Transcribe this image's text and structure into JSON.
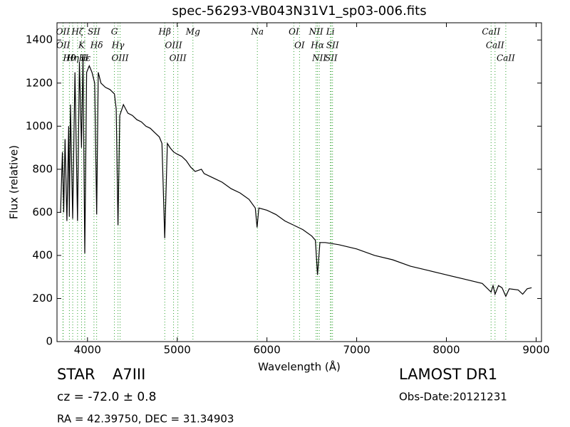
{
  "chart_data": {
    "type": "line",
    "title": "spec-56293-VB043N31V1_sp03-006.fits",
    "x_label": "Wavelength (Å)",
    "y_label": "Flux (relative)",
    "xlim": [
      3660,
      9060
    ],
    "ylim": [
      0,
      1480
    ],
    "xticks": [
      4000,
      5000,
      6000,
      7000,
      8000,
      9000
    ],
    "yticks": [
      0,
      200,
      400,
      600,
      800,
      1000,
      1200,
      1400
    ],
    "grid": false,
    "series": [
      {
        "color": "#000000",
        "x": [
          3700,
          3720,
          3735,
          3750,
          3770,
          3790,
          3797,
          3810,
          3835,
          3860,
          3889,
          3910,
          3933,
          3950,
          3970,
          3990,
          4020,
          4050,
          4080,
          4102,
          4120,
          4150,
          4200,
          4250,
          4300,
          4320,
          4340,
          4360,
          4400,
          4450,
          4500,
          4550,
          4600,
          4650,
          4700,
          4750,
          4800,
          4830,
          4861,
          4890,
          4920,
          4960,
          5000,
          5050,
          5100,
          5150,
          5200,
          5270,
          5300,
          5400,
          5500,
          5600,
          5700,
          5800,
          5870,
          5890,
          5910,
          6000,
          6100,
          6200,
          6300,
          6400,
          6500,
          6540,
          6563,
          6590,
          6650,
          6800,
          6900,
          7000,
          7200,
          7400,
          7600,
          7800,
          8000,
          8200,
          8400,
          8498,
          8520,
          8542,
          8580,
          8620,
          8662,
          8700,
          8800,
          8850,
          8900,
          8950
        ],
        "values": [
          600,
          880,
          600,
          940,
          560,
          1000,
          580,
          1100,
          570,
          1250,
          560,
          1300,
          900,
          1330,
          410,
          1250,
          1280,
          1250,
          1200,
          590,
          1250,
          1200,
          1180,
          1170,
          1150,
          1080,
          540,
          1050,
          1100,
          1060,
          1050,
          1030,
          1020,
          1000,
          990,
          970,
          950,
          920,
          480,
          920,
          900,
          880,
          870,
          860,
          840,
          810,
          790,
          800,
          780,
          760,
          740,
          710,
          690,
          660,
          620,
          530,
          620,
          610,
          590,
          560,
          540,
          520,
          490,
          470,
          310,
          460,
          460,
          450,
          440,
          430,
          400,
          380,
          350,
          330,
          310,
          290,
          270,
          230,
          260,
          220,
          260,
          250,
          210,
          245,
          240,
          220,
          245,
          250
        ]
      }
    ],
    "lines": [
      {
        "wave": 3726,
        "label": "OII"
      },
      {
        "wave": 3729,
        "label": "OII"
      },
      {
        "wave": 3798,
        "label": "Hθ"
      },
      {
        "wave": 3835,
        "label": "Hη"
      },
      {
        "wave": 3889,
        "label": "Hζ"
      },
      {
        "wave": 3934,
        "label": "K"
      },
      {
        "wave": 3968,
        "label": "H"
      },
      {
        "wave": 3970,
        "label": "Hε"
      },
      {
        "wave": 4072,
        "label": "SII"
      },
      {
        "wave": 4102,
        "label": "Hδ"
      },
      {
        "wave": 4300,
        "label": "G"
      },
      {
        "wave": 4340,
        "label": "Hγ"
      },
      {
        "wave": 4363,
        "label": "OIII"
      },
      {
        "wave": 4861,
        "label": "Hβ"
      },
      {
        "wave": 4959,
        "label": "OIII"
      },
      {
        "wave": 5007,
        "label": "OIII"
      },
      {
        "wave": 5175,
        "label": "Mg"
      },
      {
        "wave": 5893,
        "label": "Na"
      },
      {
        "wave": 6300,
        "label": "OI"
      },
      {
        "wave": 6363,
        "label": "OI"
      },
      {
        "wave": 6548,
        "label": "NII"
      },
      {
        "wave": 6563,
        "label": "Hα"
      },
      {
        "wave": 6583,
        "label": "NII"
      },
      {
        "wave": 6707,
        "label": "Li"
      },
      {
        "wave": 6716,
        "label": "SII"
      },
      {
        "wave": 6731,
        "label": "SII"
      },
      {
        "wave": 8498,
        "label": "CaII"
      },
      {
        "wave": 8542,
        "label": "CaII"
      },
      {
        "wave": 8662,
        "label": "CaII"
      }
    ],
    "line_color": "#2ca02c",
    "object_class": "STAR",
    "subclass": "A7III",
    "redshift": "cz = -72.0 ± 0.8",
    "coords": "RA = 42.39750, DEC = 31.34903",
    "survey": "LAMOST DR1",
    "obs_date": "Obs-Date:20121231"
  }
}
